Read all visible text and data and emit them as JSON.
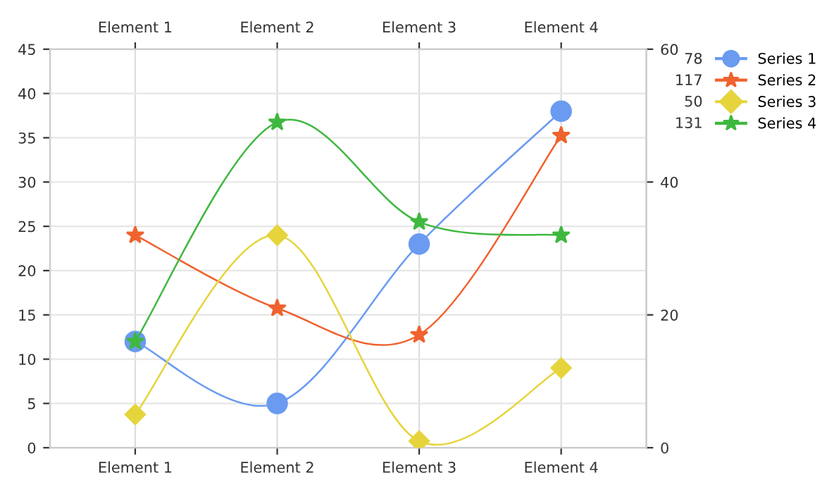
{
  "chart_data": {
    "type": "line",
    "categories": [
      "Element 1",
      "Element 2",
      "Element 3",
      "Element 4"
    ],
    "series": [
      {
        "name": "Series 1",
        "color": "#6a9bf0",
        "marker": "circle",
        "values": [
          12,
          5,
          23,
          38
        ]
      },
      {
        "name": "Series 2",
        "color": "#f0622e",
        "marker": "star",
        "axis": "y2",
        "values": [
          32,
          21,
          17,
          47
        ]
      },
      {
        "name": "Series 3",
        "color": "#e6d43c",
        "marker": "diamond",
        "axis": "y2",
        "values": [
          5,
          32,
          1,
          12
        ]
      },
      {
        "name": "Series 4",
        "color": "#3fb83f",
        "marker": "star",
        "axis": "y2",
        "values": [
          16,
          49,
          34,
          32
        ]
      }
    ],
    "annotations": [
      "78",
      "117",
      "50",
      "131"
    ],
    "ylim": [
      0,
      45
    ],
    "yticks": [
      0,
      5,
      10,
      15,
      20,
      25,
      30,
      35,
      40,
      45
    ],
    "y2lim": [
      0,
      60
    ],
    "y2ticks": [
      0,
      20,
      40,
      60
    ],
    "grid": true,
    "legend": "top right",
    "line_style": "solid"
  }
}
